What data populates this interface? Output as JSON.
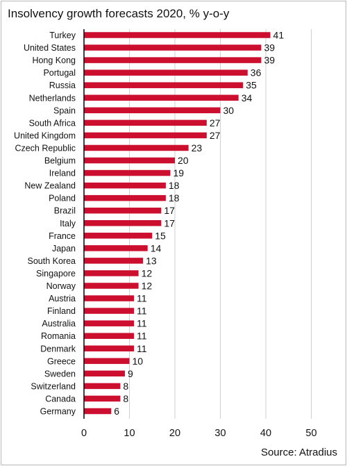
{
  "title": "Insolvency growth forecasts 2020, % y-o-y",
  "source": "Source: Atradius",
  "colors": {
    "bar": "#cc0f2f",
    "axis": "#111111",
    "grid": "#cfcfcf"
  },
  "chart_data": {
    "type": "bar",
    "orientation": "horizontal",
    "title": "Insolvency growth forecasts 2020, % y-o-y",
    "categories": [
      "Turkey",
      "United States",
      "Hong Kong",
      "Portugal",
      "Russia",
      "Netherlands",
      "Spain",
      "South Africa",
      "United Kingdom",
      "Czech Republic",
      "Belgium",
      "Ireland",
      "New Zealand",
      "Poland",
      "Brazil",
      "Italy",
      "France",
      "Japan",
      "South Korea",
      "Singapore",
      "Norway",
      "Austria",
      "Finland",
      "Australia",
      "Romania",
      "Denmark",
      "Greece",
      "Sweden",
      "Switzerland",
      "Canada",
      "Germany"
    ],
    "values": [
      41,
      39,
      39,
      36,
      35,
      34,
      30,
      27,
      27,
      23,
      20,
      19,
      18,
      18,
      17,
      17,
      15,
      14,
      13,
      12,
      12,
      11,
      11,
      11,
      11,
      11,
      10,
      9,
      8,
      8,
      6
    ],
    "xlim": [
      0,
      50
    ],
    "xticks": [
      0,
      10,
      20,
      30,
      40,
      50
    ],
    "grid": "vertical"
  }
}
